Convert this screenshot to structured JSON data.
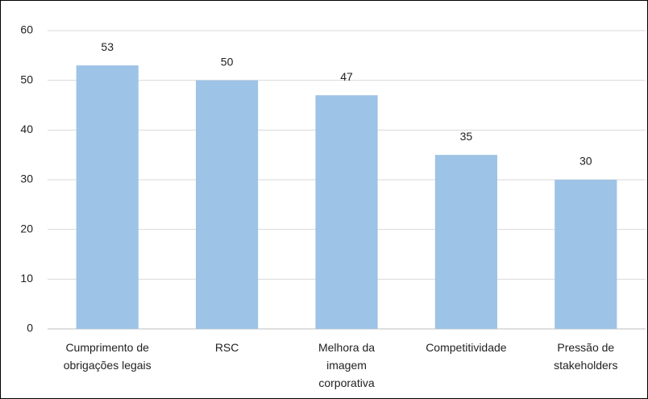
{
  "chart_data": {
    "type": "bar",
    "categories": [
      "Cumprimento de obrigações legais",
      "RSC",
      "Melhora da imagem corporativa",
      "Competitividade",
      "Pressão de stakeholders"
    ],
    "values": [
      53,
      50,
      47,
      35,
      30
    ],
    "color": "#9dc3e6",
    "ylim": [
      0,
      60
    ],
    "yticks": [
      0,
      10,
      20,
      30,
      40,
      50,
      60
    ],
    "grid": true
  }
}
